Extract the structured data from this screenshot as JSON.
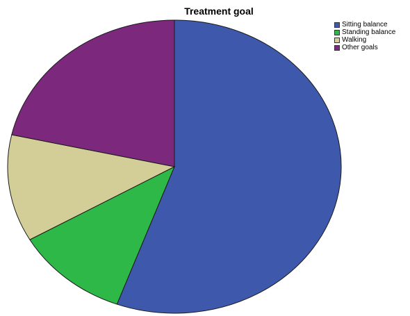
{
  "chart_data": {
    "type": "pie",
    "title": "Treatment goal",
    "legend_position": "top-right",
    "slices": [
      {
        "label": "Sitting balance",
        "value": 55.6,
        "color": "#3E58AC"
      },
      {
        "label": "Standing balance",
        "value": 11.1,
        "color": "#2EB848"
      },
      {
        "label": "Walking",
        "value": 11.8,
        "color": "#D3CE97"
      },
      {
        "label": "Other goals",
        "value": 21.5,
        "color": "#7B287D"
      }
    ]
  }
}
